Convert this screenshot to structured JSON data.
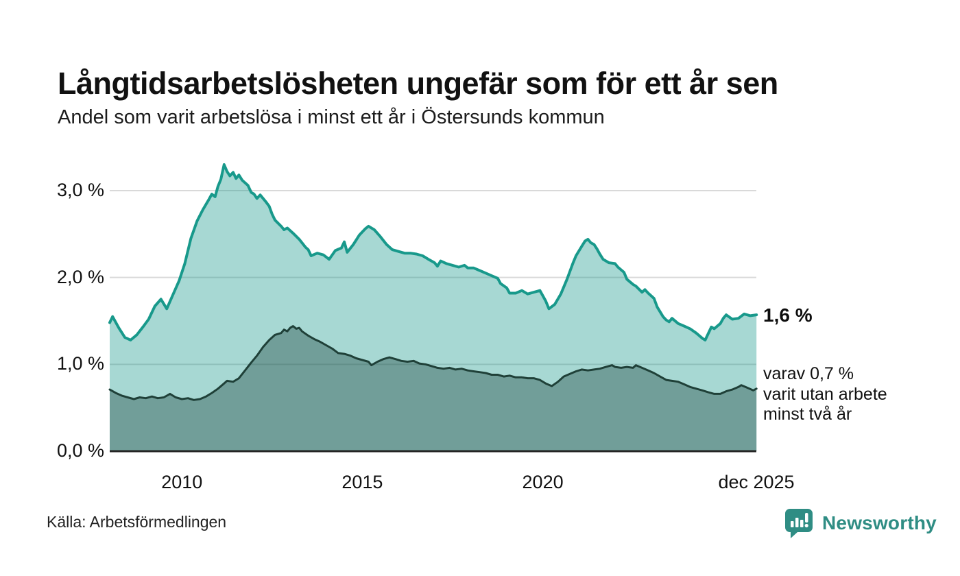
{
  "header": {
    "title": "Långtidsarbetslösheten ungefär som för ett år sen",
    "subtitle": "Andel som varit arbetslösa i minst ett år i Östersunds kommun"
  },
  "annotations": {
    "latest_total": "1,6 %",
    "latest_two_years": "varav 0,7 %\nvarit utan arbete\nminst två år"
  },
  "footer": {
    "source": "Källa: Arbetsförmedlingen",
    "brand": "Newsworthy"
  },
  "colors": {
    "line_total": "#18998b",
    "fill_total": "rgba(24,153,139,0.38)",
    "line_two_years": "#1f4038",
    "fill_two_years": "rgba(14,51,46,0.35)",
    "gridline": "#d9d9d9",
    "baseline": "#252525",
    "brand_teal": "#2f8d84",
    "text": "#111111"
  },
  "chart_data": {
    "type": "area",
    "title": "Långtidsarbetslösheten ungefär som för ett år sen",
    "subtitle": "Andel som varit arbetslösa i minst ett år i Östersunds kommun",
    "unit": "%",
    "grid": "horizontal",
    "legend_position": "right-annotations",
    "x_range": [
      2008.0,
      2025.9167
    ],
    "y_range": [
      0,
      3.4
    ],
    "y_ticks": [
      {
        "label": "0,0 %",
        "value": 0
      },
      {
        "label": "1,0 %",
        "value": 1
      },
      {
        "label": "2,0 %",
        "value": 2
      },
      {
        "label": "3,0 %",
        "value": 3
      }
    ],
    "x_ticks": [
      {
        "label": "2010",
        "value": 2010
      },
      {
        "label": "2015",
        "value": 2015
      },
      {
        "label": "2020",
        "value": 2020
      },
      {
        "label": "dec 2025",
        "value": 2025.9167
      }
    ],
    "series": [
      {
        "name": "Andel arbetslösa minst ett år",
        "latest_value": 1.6,
        "latest_label": "1,6 %",
        "points": [
          [
            2008.0,
            1.48
          ],
          [
            2008.08,
            1.55
          ],
          [
            2008.25,
            1.42
          ],
          [
            2008.42,
            1.31
          ],
          [
            2008.58,
            1.28
          ],
          [
            2008.75,
            1.34
          ],
          [
            2008.92,
            1.43
          ],
          [
            2009.08,
            1.52
          ],
          [
            2009.25,
            1.67
          ],
          [
            2009.42,
            1.75
          ],
          [
            2009.58,
            1.64
          ],
          [
            2009.75,
            1.8
          ],
          [
            2009.92,
            1.96
          ],
          [
            2010.08,
            2.16
          ],
          [
            2010.25,
            2.45
          ],
          [
            2010.42,
            2.65
          ],
          [
            2010.58,
            2.78
          ],
          [
            2010.75,
            2.9
          ],
          [
            2010.83,
            2.96
          ],
          [
            2010.92,
            2.93
          ],
          [
            2011.0,
            3.05
          ],
          [
            2011.08,
            3.13
          ],
          [
            2011.17,
            3.3
          ],
          [
            2011.25,
            3.22
          ],
          [
            2011.33,
            3.17
          ],
          [
            2011.42,
            3.21
          ],
          [
            2011.5,
            3.14
          ],
          [
            2011.58,
            3.18
          ],
          [
            2011.67,
            3.12
          ],
          [
            2011.83,
            3.06
          ],
          [
            2011.92,
            2.98
          ],
          [
            2012.0,
            2.96
          ],
          [
            2012.08,
            2.91
          ],
          [
            2012.17,
            2.95
          ],
          [
            2012.33,
            2.87
          ],
          [
            2012.42,
            2.82
          ],
          [
            2012.5,
            2.73
          ],
          [
            2012.58,
            2.66
          ],
          [
            2012.75,
            2.59
          ],
          [
            2012.83,
            2.55
          ],
          [
            2012.92,
            2.57
          ],
          [
            2013.08,
            2.51
          ],
          [
            2013.25,
            2.44
          ],
          [
            2013.42,
            2.35
          ],
          [
            2013.5,
            2.32
          ],
          [
            2013.58,
            2.25
          ],
          [
            2013.75,
            2.28
          ],
          [
            2013.92,
            2.26
          ],
          [
            2014.08,
            2.21
          ],
          [
            2014.25,
            2.31
          ],
          [
            2014.42,
            2.34
          ],
          [
            2014.5,
            2.41
          ],
          [
            2014.58,
            2.29
          ],
          [
            2014.75,
            2.38
          ],
          [
            2014.92,
            2.49
          ],
          [
            2015.08,
            2.56
          ],
          [
            2015.17,
            2.59
          ],
          [
            2015.33,
            2.55
          ],
          [
            2015.5,
            2.47
          ],
          [
            2015.67,
            2.38
          ],
          [
            2015.83,
            2.32
          ],
          [
            2016.0,
            2.3
          ],
          [
            2016.17,
            2.28
          ],
          [
            2016.33,
            2.28
          ],
          [
            2016.5,
            2.27
          ],
          [
            2016.67,
            2.25
          ],
          [
            2016.83,
            2.21
          ],
          [
            2017.0,
            2.17
          ],
          [
            2017.08,
            2.13
          ],
          [
            2017.17,
            2.19
          ],
          [
            2017.33,
            2.16
          ],
          [
            2017.5,
            2.14
          ],
          [
            2017.67,
            2.12
          ],
          [
            2017.83,
            2.14
          ],
          [
            2017.92,
            2.11
          ],
          [
            2018.08,
            2.11
          ],
          [
            2018.25,
            2.08
          ],
          [
            2018.42,
            2.05
          ],
          [
            2018.58,
            2.02
          ],
          [
            2018.75,
            1.99
          ],
          [
            2018.83,
            1.93
          ],
          [
            2019.0,
            1.88
          ],
          [
            2019.08,
            1.82
          ],
          [
            2019.25,
            1.82
          ],
          [
            2019.42,
            1.85
          ],
          [
            2019.58,
            1.81
          ],
          [
            2019.75,
            1.83
          ],
          [
            2019.92,
            1.85
          ],
          [
            2020.08,
            1.73
          ],
          [
            2020.17,
            1.64
          ],
          [
            2020.33,
            1.69
          ],
          [
            2020.5,
            1.81
          ],
          [
            2020.67,
            1.98
          ],
          [
            2020.83,
            2.16
          ],
          [
            2020.92,
            2.25
          ],
          [
            2021.08,
            2.36
          ],
          [
            2021.17,
            2.42
          ],
          [
            2021.25,
            2.44
          ],
          [
            2021.33,
            2.4
          ],
          [
            2021.42,
            2.38
          ],
          [
            2021.5,
            2.33
          ],
          [
            2021.58,
            2.27
          ],
          [
            2021.67,
            2.21
          ],
          [
            2021.83,
            2.17
          ],
          [
            2022.0,
            2.16
          ],
          [
            2022.08,
            2.12
          ],
          [
            2022.25,
            2.06
          ],
          [
            2022.33,
            1.98
          ],
          [
            2022.5,
            1.92
          ],
          [
            2022.58,
            1.9
          ],
          [
            2022.75,
            1.83
          ],
          [
            2022.83,
            1.86
          ],
          [
            2022.92,
            1.82
          ],
          [
            2023.08,
            1.76
          ],
          [
            2023.17,
            1.66
          ],
          [
            2023.33,
            1.55
          ],
          [
            2023.42,
            1.51
          ],
          [
            2023.5,
            1.49
          ],
          [
            2023.58,
            1.53
          ],
          [
            2023.75,
            1.47
          ],
          [
            2023.92,
            1.44
          ],
          [
            2024.08,
            1.41
          ],
          [
            2024.25,
            1.36
          ],
          [
            2024.42,
            1.3
          ],
          [
            2024.5,
            1.28
          ],
          [
            2024.58,
            1.35
          ],
          [
            2024.67,
            1.43
          ],
          [
            2024.75,
            1.41
          ],
          [
            2024.92,
            1.47
          ],
          [
            2025.0,
            1.53
          ],
          [
            2025.08,
            1.57
          ],
          [
            2025.25,
            1.52
          ],
          [
            2025.42,
            1.53
          ],
          [
            2025.58,
            1.58
          ],
          [
            2025.75,
            1.56
          ],
          [
            2025.92,
            1.57
          ]
        ]
      },
      {
        "name": "varav utan arbete minst två år",
        "latest_value": 0.7,
        "latest_label": "varav 0,7 %",
        "points": [
          [
            2008.0,
            0.71
          ],
          [
            2008.17,
            0.67
          ],
          [
            2008.33,
            0.64
          ],
          [
            2008.5,
            0.62
          ],
          [
            2008.67,
            0.6
          ],
          [
            2008.83,
            0.62
          ],
          [
            2009.0,
            0.61
          ],
          [
            2009.17,
            0.63
          ],
          [
            2009.33,
            0.61
          ],
          [
            2009.5,
            0.62
          ],
          [
            2009.67,
            0.66
          ],
          [
            2009.83,
            0.62
          ],
          [
            2010.0,
            0.6
          ],
          [
            2010.17,
            0.61
          ],
          [
            2010.33,
            0.59
          ],
          [
            2010.5,
            0.6
          ],
          [
            2010.67,
            0.63
          ],
          [
            2010.83,
            0.67
          ],
          [
            2011.0,
            0.72
          ],
          [
            2011.17,
            0.78
          ],
          [
            2011.25,
            0.81
          ],
          [
            2011.42,
            0.8
          ],
          [
            2011.58,
            0.84
          ],
          [
            2011.75,
            0.93
          ],
          [
            2011.92,
            1.02
          ],
          [
            2012.08,
            1.1
          ],
          [
            2012.25,
            1.2
          ],
          [
            2012.42,
            1.28
          ],
          [
            2012.58,
            1.34
          ],
          [
            2012.75,
            1.36
          ],
          [
            2012.83,
            1.4
          ],
          [
            2012.92,
            1.38
          ],
          [
            2013.0,
            1.42
          ],
          [
            2013.08,
            1.44
          ],
          [
            2013.17,
            1.41
          ],
          [
            2013.25,
            1.42
          ],
          [
            2013.33,
            1.38
          ],
          [
            2013.5,
            1.33
          ],
          [
            2013.67,
            1.29
          ],
          [
            2013.83,
            1.26
          ],
          [
            2014.0,
            1.22
          ],
          [
            2014.17,
            1.18
          ],
          [
            2014.33,
            1.13
          ],
          [
            2014.5,
            1.12
          ],
          [
            2014.67,
            1.1
          ],
          [
            2014.83,
            1.07
          ],
          [
            2015.0,
            1.05
          ],
          [
            2015.17,
            1.03
          ],
          [
            2015.25,
            0.99
          ],
          [
            2015.42,
            1.03
          ],
          [
            2015.58,
            1.06
          ],
          [
            2015.75,
            1.08
          ],
          [
            2015.92,
            1.06
          ],
          [
            2016.08,
            1.04
          ],
          [
            2016.25,
            1.03
          ],
          [
            2016.42,
            1.04
          ],
          [
            2016.58,
            1.01
          ],
          [
            2016.75,
            1.0
          ],
          [
            2016.92,
            0.98
          ],
          [
            2017.08,
            0.96
          ],
          [
            2017.25,
            0.95
          ],
          [
            2017.42,
            0.96
          ],
          [
            2017.58,
            0.94
          ],
          [
            2017.75,
            0.95
          ],
          [
            2017.92,
            0.93
          ],
          [
            2018.08,
            0.92
          ],
          [
            2018.25,
            0.91
          ],
          [
            2018.42,
            0.9
          ],
          [
            2018.58,
            0.88
          ],
          [
            2018.75,
            0.88
          ],
          [
            2018.92,
            0.86
          ],
          [
            2019.08,
            0.87
          ],
          [
            2019.25,
            0.85
          ],
          [
            2019.42,
            0.85
          ],
          [
            2019.58,
            0.84
          ],
          [
            2019.75,
            0.84
          ],
          [
            2019.92,
            0.82
          ],
          [
            2020.08,
            0.78
          ],
          [
            2020.25,
            0.75
          ],
          [
            2020.42,
            0.8
          ],
          [
            2020.58,
            0.86
          ],
          [
            2020.75,
            0.89
          ],
          [
            2020.92,
            0.92
          ],
          [
            2021.08,
            0.94
          ],
          [
            2021.25,
            0.93
          ],
          [
            2021.42,
            0.94
          ],
          [
            2021.58,
            0.95
          ],
          [
            2021.75,
            0.97
          ],
          [
            2021.92,
            0.99
          ],
          [
            2022.0,
            0.97
          ],
          [
            2022.17,
            0.96
          ],
          [
            2022.33,
            0.97
          ],
          [
            2022.5,
            0.96
          ],
          [
            2022.58,
            0.99
          ],
          [
            2022.75,
            0.96
          ],
          [
            2022.92,
            0.93
          ],
          [
            2023.08,
            0.9
          ],
          [
            2023.25,
            0.86
          ],
          [
            2023.42,
            0.82
          ],
          [
            2023.58,
            0.81
          ],
          [
            2023.75,
            0.8
          ],
          [
            2023.92,
            0.77
          ],
          [
            2024.08,
            0.74
          ],
          [
            2024.25,
            0.72
          ],
          [
            2024.42,
            0.7
          ],
          [
            2024.58,
            0.68
          ],
          [
            2024.75,
            0.66
          ],
          [
            2024.92,
            0.66
          ],
          [
            2025.08,
            0.69
          ],
          [
            2025.25,
            0.71
          ],
          [
            2025.42,
            0.74
          ],
          [
            2025.5,
            0.76
          ],
          [
            2025.67,
            0.73
          ],
          [
            2025.83,
            0.7
          ],
          [
            2025.92,
            0.72
          ]
        ]
      }
    ]
  }
}
